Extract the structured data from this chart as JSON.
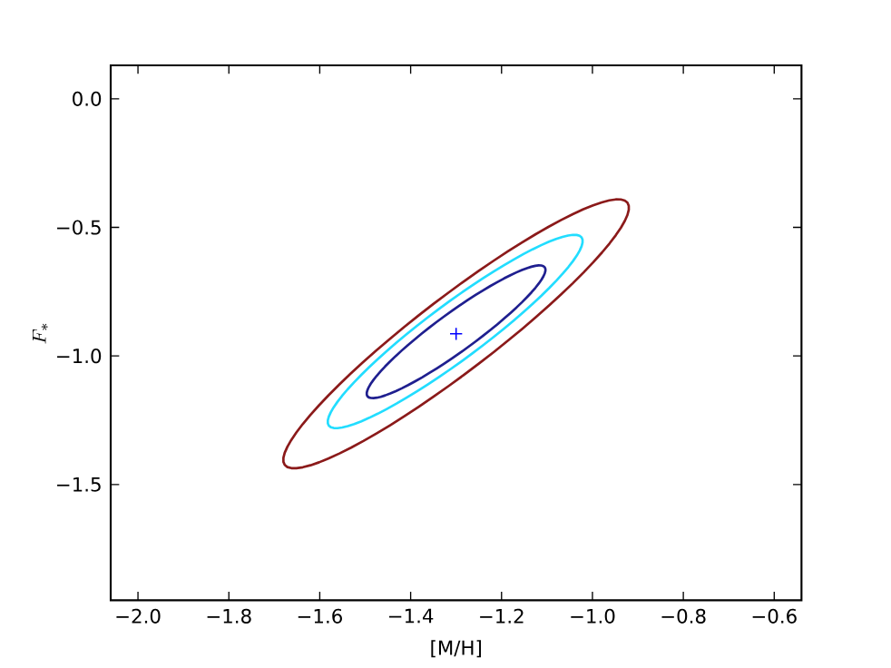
{
  "chart_data": {
    "type": "scatter",
    "xlabel": "[M/H]",
    "ylabel": "F_*",
    "xlim": [
      -2.06,
      -0.54
    ],
    "ylim": [
      -1.95,
      0.13
    ],
    "xticks": [
      {
        "value": -2.0,
        "label": "−2.0"
      },
      {
        "value": -1.8,
        "label": "−1.8"
      },
      {
        "value": -1.6,
        "label": "−1.6"
      },
      {
        "value": -1.4,
        "label": "−1.4"
      },
      {
        "value": -1.2,
        "label": "−1.2"
      },
      {
        "value": -1.0,
        "label": "−1.0"
      },
      {
        "value": -0.8,
        "label": "−0.8"
      },
      {
        "value": -0.6,
        "label": "−0.6"
      }
    ],
    "yticks": [
      {
        "value": 0.0,
        "label": "0.0"
      },
      {
        "value": -0.5,
        "label": "−0.5"
      },
      {
        "value": -1.0,
        "label": "−1.0"
      },
      {
        "value": -1.5,
        "label": "−1.5"
      }
    ],
    "marker": "cross",
    "series": [
      {
        "color": "#0000ff",
        "x": [
          -1.3
        ],
        "values": [
          -0.914
        ]
      }
    ]
  }
}
